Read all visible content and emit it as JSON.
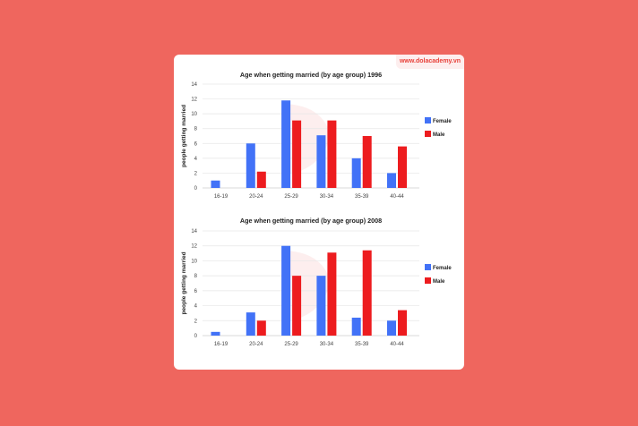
{
  "watermark": "www.dolacademy.vn",
  "colors": {
    "female": "#4272F7",
    "male": "#ED1C1F",
    "background": "#EF665E"
  },
  "chart_data": [
    {
      "type": "bar",
      "title": "Age when getting married (by age group) 1996",
      "xlabel": "",
      "ylabel": "people getting married",
      "ylim": [
        0,
        14
      ],
      "yticks": [
        0,
        2,
        4,
        6,
        8,
        10,
        12,
        14
      ],
      "grid": true,
      "legend": "right",
      "categories": [
        "16-19",
        "20-24",
        "25-29",
        "30-34",
        "35-39",
        "40-44"
      ],
      "series": [
        {
          "name": "Female",
          "values": [
            1,
            6,
            11.8,
            7.1,
            4,
            2
          ]
        },
        {
          "name": "Male",
          "values": [
            0,
            2.2,
            9.1,
            9.1,
            7,
            5.6
          ]
        }
      ]
    },
    {
      "type": "bar",
      "title": "Age when getting married (by age group) 2008",
      "xlabel": "",
      "ylabel": "people getting married",
      "ylim": [
        0,
        14
      ],
      "yticks": [
        0,
        2,
        4,
        6,
        8,
        10,
        12,
        14
      ],
      "grid": true,
      "legend": "right",
      "categories": [
        "16-19",
        "20-24",
        "25-29",
        "30-34",
        "35-39",
        "40-44"
      ],
      "series": [
        {
          "name": "Female",
          "values": [
            0.5,
            3.1,
            12,
            8,
            2.4,
            2
          ]
        },
        {
          "name": "Male",
          "values": [
            0,
            2,
            8,
            11.1,
            11.4,
            3.4
          ]
        }
      ]
    }
  ]
}
